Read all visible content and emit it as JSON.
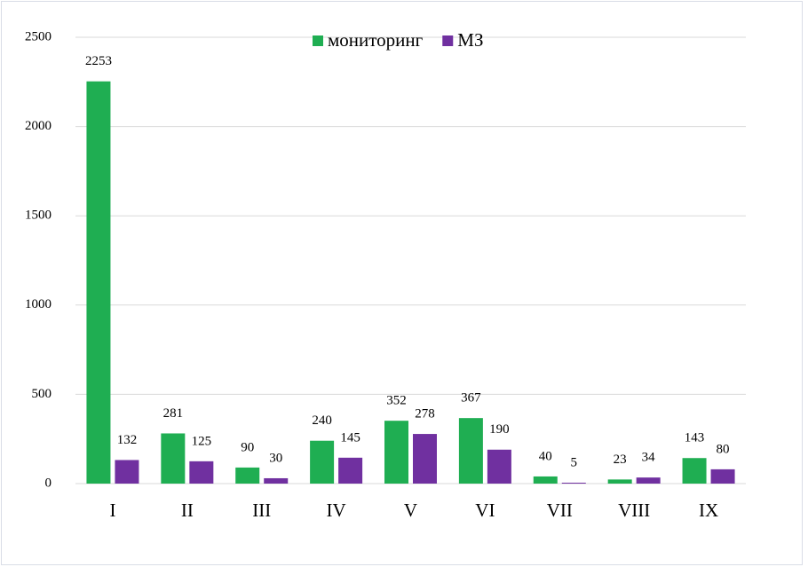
{
  "chart_data": {
    "type": "bar",
    "categories": [
      "I",
      "II",
      "III",
      "IV",
      "V",
      "VI",
      "VII",
      "VIII",
      "IX"
    ],
    "series": [
      {
        "name": "мониторинг",
        "color": "#1fae52",
        "values": [
          2253,
          281,
          90,
          240,
          352,
          367,
          40,
          23,
          143
        ]
      },
      {
        "name": "МЗ",
        "color": "#7030a0",
        "values": [
          132,
          125,
          30,
          145,
          278,
          190,
          5,
          34,
          80
        ]
      }
    ],
    "ylim": [
      0,
      2500
    ],
    "yticks": [
      0,
      500,
      1000,
      1500,
      2000,
      2500
    ],
    "grid": true,
    "legend": "top"
  }
}
